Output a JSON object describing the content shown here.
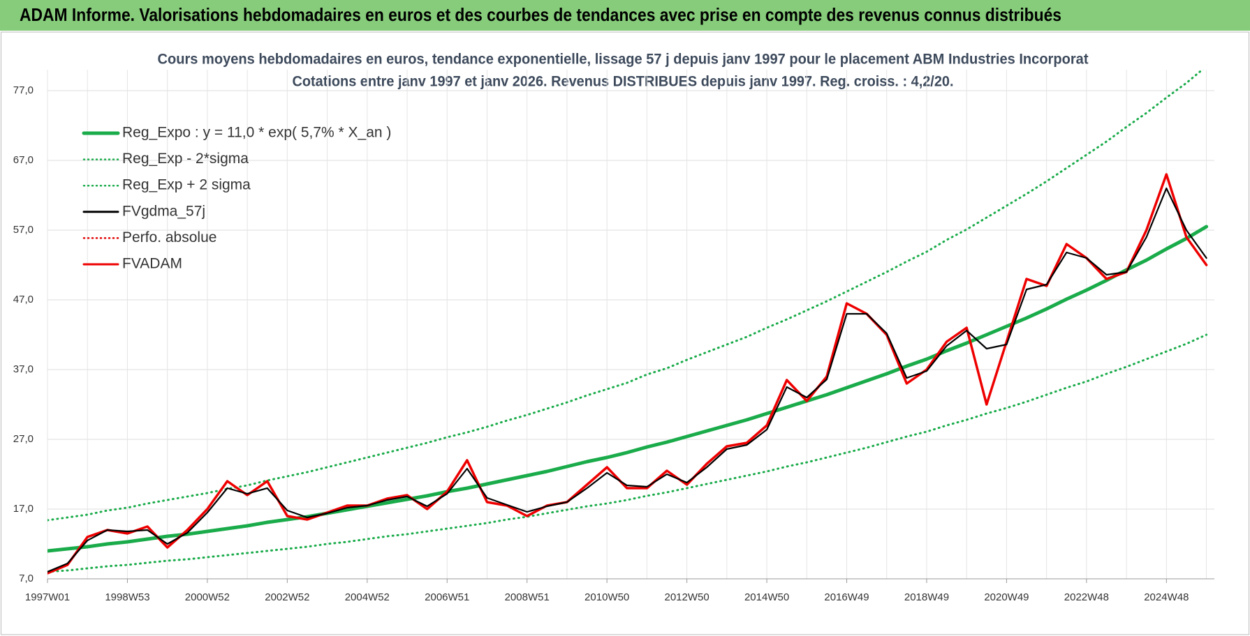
{
  "header": {
    "title": "ADAM Informe. Valorisations hebdomadaires en euros et des courbes de tendances avec prise en compte des revenus connus distribués"
  },
  "chart_data": {
    "type": "line",
    "title": "Cours moyens hebdomadaires en euros, tendance exponentielle, lissage 57 j depuis janv 1997 pour le placement ABM Industries Incorporat",
    "subtitle": "Cotations entre janv 1997 et janv 2026. Revenus DISTRIBUES depuis janv 1997. Reg. croiss. : 4,2/20.",
    "categories": [
      "1997W01",
      null,
      null,
      null,
      "1998W53",
      null,
      null,
      null,
      "2000W52",
      null,
      null,
      null,
      "2002W52",
      null,
      null,
      null,
      "2004W52",
      null,
      null,
      null,
      "2006W51",
      null,
      null,
      null,
      "2008W51",
      null,
      null,
      null,
      "2010W50",
      null,
      null,
      null,
      "2012W50",
      null,
      null,
      null,
      "2014W50",
      null,
      null,
      null,
      "2016W49",
      null,
      null,
      null,
      "2018W49",
      null,
      null,
      null,
      "2020W49",
      null,
      null,
      null,
      "2022W48",
      null,
      null,
      null,
      "2024W48",
      null,
      null
    ],
    "ylim": [
      7,
      80
    ],
    "yticks": [
      {
        "value": 7,
        "label": "7,0"
      },
      {
        "value": 17,
        "label": "17,0"
      },
      {
        "value": 27,
        "label": "27,0"
      },
      {
        "value": 37,
        "label": "37,0"
      },
      {
        "value": 47,
        "label": "47,0"
      },
      {
        "value": 57,
        "label": "57,0"
      },
      {
        "value": 67,
        "label": "67,0"
      },
      {
        "value": 77,
        "label": "77,0"
      }
    ],
    "grid": true,
    "legend": "top-left",
    "series": [
      {
        "name": "Reg_Expo : y = 11,0 * exp( 5,7% *  X_an )",
        "color": "#1aab4a",
        "style": "solid",
        "values": [
          11.0,
          11.3,
          11.6,
          12.0,
          12.3,
          12.7,
          13.1,
          13.4,
          13.8,
          14.2,
          14.6,
          15.1,
          15.5,
          15.9,
          16.4,
          16.9,
          17.4,
          17.9,
          18.4,
          18.9,
          19.5,
          20.0,
          20.6,
          21.2,
          21.8,
          22.4,
          23.1,
          23.8,
          24.4,
          25.1,
          25.9,
          26.6,
          27.4,
          28.2,
          29.0,
          29.8,
          30.7,
          31.6,
          32.5,
          33.4,
          34.4,
          35.4,
          36.4,
          37.5,
          38.5,
          39.7,
          40.8,
          42.0,
          43.2,
          44.4,
          45.7,
          47.1,
          48.4,
          49.8,
          51.3,
          52.7,
          54.3,
          55.8,
          57.5
        ]
      },
      {
        "name": "Reg_Exp - 2*sigma",
        "color": "#1aab4a",
        "style": "dotted",
        "values": [
          8.0,
          8.2,
          8.5,
          8.8,
          9.0,
          9.3,
          9.6,
          9.8,
          10.1,
          10.4,
          10.7,
          11.0,
          11.3,
          11.6,
          12.0,
          12.3,
          12.7,
          13.1,
          13.4,
          13.8,
          14.2,
          14.6,
          15.0,
          15.5,
          15.9,
          16.4,
          16.9,
          17.4,
          17.8,
          18.3,
          18.9,
          19.4,
          20.0,
          20.6,
          21.2,
          21.8,
          22.4,
          23.1,
          23.7,
          24.4,
          25.1,
          25.8,
          26.6,
          27.4,
          28.1,
          29.0,
          29.8,
          30.7,
          31.5,
          32.4,
          33.4,
          34.4,
          35.3,
          36.4,
          37.4,
          38.5,
          39.6,
          40.7,
          42.0
        ]
      },
      {
        "name": "Reg_Exp + 2 sigma",
        "color": "#1aab4a",
        "style": "dotted",
        "values": [
          15.4,
          15.8,
          16.2,
          16.8,
          17.2,
          17.8,
          18.3,
          18.8,
          19.3,
          19.9,
          20.4,
          21.1,
          21.7,
          22.3,
          23.0,
          23.7,
          24.4,
          25.1,
          25.8,
          26.5,
          27.3,
          28.0,
          28.8,
          29.7,
          30.5,
          31.4,
          32.3,
          33.3,
          34.2,
          35.1,
          36.3,
          37.2,
          38.4,
          39.5,
          40.6,
          41.7,
          43.0,
          44.2,
          45.5,
          46.8,
          48.2,
          49.6,
          51.0,
          52.5,
          53.9,
          55.6,
          57.1,
          58.8,
          60.5,
          62.2,
          64.0,
          65.9,
          67.8,
          69.7,
          71.8,
          73.8,
          76.0,
          78.1,
          80.5
        ]
      },
      {
        "name": "FVgdma_57j",
        "color": "#000000",
        "style": "solid",
        "values": [
          8.0,
          9.2,
          12.5,
          14.0,
          13.8,
          14.0,
          12.0,
          13.6,
          16.5,
          20.0,
          19.2,
          20.0,
          16.8,
          15.8,
          16.4,
          17.2,
          17.5,
          18.3,
          18.8,
          17.4,
          19.2,
          22.8,
          18.6,
          17.6,
          16.6,
          17.4,
          18.0,
          20.0,
          22.2,
          20.4,
          20.2,
          22.0,
          20.8,
          23.0,
          25.6,
          26.2,
          28.4,
          34.5,
          33.0,
          35.6,
          45.0,
          45.0,
          42.2,
          35.8,
          36.8,
          40.4,
          42.6,
          40.0,
          40.6,
          48.5,
          49.2,
          53.8,
          53.0,
          50.6,
          51.0,
          56.0,
          63.0,
          57.0,
          53.0
        ]
      },
      {
        "name": "Perfo. absolue",
        "color": "#e00000",
        "style": "dotted",
        "values": [
          7.8,
          9.0,
          13.0,
          14.0,
          13.5,
          14.5,
          11.5,
          14.0,
          17.0,
          21.0,
          19.0,
          21.0,
          16.0,
          15.5,
          16.5,
          17.5,
          17.5,
          18.5,
          19.0,
          17.0,
          19.5,
          24.0,
          18.0,
          17.5,
          16.0,
          17.5,
          18.0,
          20.5,
          23.0,
          20.0,
          20.0,
          22.5,
          20.5,
          23.5,
          26.0,
          26.5,
          29.0,
          35.5,
          32.5,
          36.0,
          46.5,
          45.0,
          42.0,
          35.0,
          37.0,
          41.0,
          43.0,
          32.0,
          41.0,
          50.0,
          49.0,
          55.0,
          53.0,
          50.0,
          51.0,
          57.0,
          65.0,
          56.0,
          52.0
        ]
      },
      {
        "name": "FVADAM",
        "color": "#ee0000",
        "style": "solid",
        "values": [
          7.8,
          9.0,
          13.0,
          14.0,
          13.5,
          14.5,
          11.5,
          14.0,
          17.0,
          21.0,
          19.0,
          21.0,
          16.0,
          15.5,
          16.5,
          17.5,
          17.5,
          18.5,
          19.0,
          17.0,
          19.5,
          24.0,
          18.0,
          17.5,
          16.0,
          17.5,
          18.0,
          20.5,
          23.0,
          20.0,
          20.0,
          22.5,
          20.5,
          23.5,
          26.0,
          26.5,
          29.0,
          35.5,
          32.5,
          36.0,
          46.5,
          45.0,
          42.0,
          35.0,
          37.0,
          41.0,
          43.0,
          32.0,
          41.0,
          50.0,
          49.0,
          55.0,
          53.0,
          50.0,
          51.0,
          57.0,
          65.0,
          56.0,
          52.0
        ]
      }
    ]
  }
}
